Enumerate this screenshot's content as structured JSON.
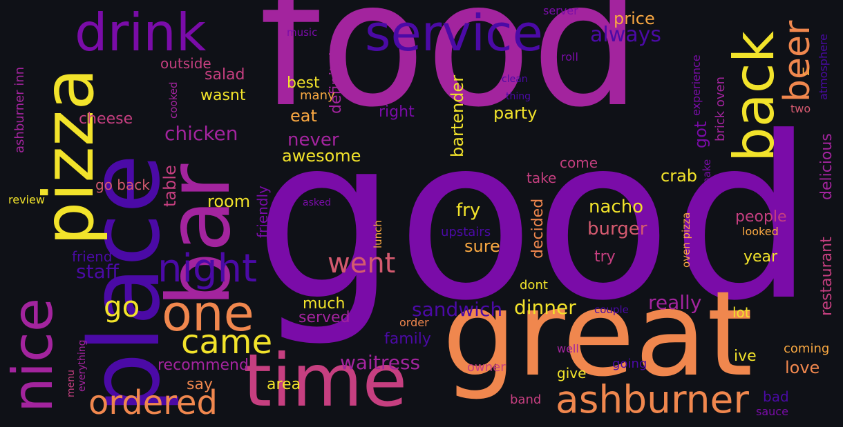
{
  "background": "#0f1117",
  "palette": {
    "deep_purple": "#4b0aa6",
    "purple": "#7a0ca8",
    "magenta": "#a3249e",
    "pink": "#c63f80",
    "salmon": "#d45a6f",
    "orange": "#f0874e",
    "light_orange": "#f9a842",
    "yellow": "#f2e32b"
  },
  "words": [
    {
      "text": "food",
      "color": "#a3249e"
    },
    {
      "text": "good",
      "color": "#7a0ca8"
    },
    {
      "text": "great",
      "color": "#f0874e"
    },
    {
      "text": "place",
      "color": "#4b0aa6"
    },
    {
      "text": "bar",
      "color": "#a3249e"
    },
    {
      "text": "time",
      "color": "#c63f80"
    },
    {
      "text": "pizza",
      "color": "#f2e32b"
    },
    {
      "text": "nice",
      "color": "#a3249e"
    },
    {
      "text": "drink",
      "color": "#7a0ca8"
    },
    {
      "text": "service",
      "color": "#4b0aa6"
    },
    {
      "text": "back",
      "color": "#f2e32b"
    },
    {
      "text": "beer",
      "color": "#f0874e"
    },
    {
      "text": "one",
      "color": "#f0874e"
    },
    {
      "text": "night",
      "color": "#4b0aa6"
    },
    {
      "text": "ashburner",
      "color": "#f0874e"
    },
    {
      "text": "came",
      "color": "#f2e32b"
    },
    {
      "text": "ordered",
      "color": "#f0874e"
    },
    {
      "text": "went",
      "color": "#d45a6f"
    },
    {
      "text": "go",
      "color": "#f2e32b"
    },
    {
      "text": "always",
      "color": "#4b0aa6"
    },
    {
      "text": "u",
      "color": "#f9a842"
    },
    {
      "text": "price",
      "color": "#f9a842"
    },
    {
      "text": "server",
      "color": "#7a0ca8"
    },
    {
      "text": "roll",
      "color": "#7a0ca8"
    },
    {
      "text": "music",
      "color": "#7a0ca8"
    },
    {
      "text": "atmosphere",
      "color": "#4b0aa6"
    },
    {
      "text": "two",
      "color": "#d45a6f"
    },
    {
      "text": "experience",
      "color": "#7a0ca8"
    },
    {
      "text": "brick oven",
      "color": "#a3249e"
    },
    {
      "text": "got",
      "color": "#7a0ca8"
    },
    {
      "text": "delicious",
      "color": "#a3249e"
    },
    {
      "text": "restaurant",
      "color": "#c63f80"
    },
    {
      "text": "make",
      "color": "#7a0ca8"
    },
    {
      "text": "crab",
      "color": "#f2e32b"
    },
    {
      "text": "come",
      "color": "#c63f80"
    },
    {
      "text": "take",
      "color": "#c63f80"
    },
    {
      "text": "nacho",
      "color": "#f2e32b"
    },
    {
      "text": "burger",
      "color": "#d45a6f"
    },
    {
      "text": "try",
      "color": "#c63f80"
    },
    {
      "text": "decided",
      "color": "#f0874e"
    },
    {
      "text": "fry",
      "color": "#f2e32b"
    },
    {
      "text": "upstairs",
      "color": "#4b0aa6"
    },
    {
      "text": "sure",
      "color": "#f9a842"
    },
    {
      "text": "party",
      "color": "#f2e32b"
    },
    {
      "text": "bartender",
      "color": "#f2e32b"
    },
    {
      "text": "right",
      "color": "#7a0ca8"
    },
    {
      "text": "thing",
      "color": "#4b0aa6"
    },
    {
      "text": "clean",
      "color": "#4b0aa6"
    },
    {
      "text": "eat",
      "color": "#f9a842"
    },
    {
      "text": "definitely",
      "color": "#a3249e"
    },
    {
      "text": "best",
      "color": "#f2e32b"
    },
    {
      "text": "many",
      "color": "#f9a842"
    },
    {
      "text": "wasnt",
      "color": "#f2e32b"
    },
    {
      "text": "salad",
      "color": "#c63f80"
    },
    {
      "text": "outside",
      "color": "#c63f80"
    },
    {
      "text": "cooked",
      "color": "#a3249e"
    },
    {
      "text": "cheese",
      "color": "#c63f80"
    },
    {
      "text": "chicken",
      "color": "#a3249e"
    },
    {
      "text": "never",
      "color": "#a3249e"
    },
    {
      "text": "awesome",
      "color": "#f2e32b"
    },
    {
      "text": "table",
      "color": "#c63f80"
    },
    {
      "text": "go back",
      "color": "#d45a6f"
    },
    {
      "text": "room",
      "color": "#f2e32b"
    },
    {
      "text": "friendly",
      "color": "#7a0ca8"
    },
    {
      "text": "asked",
      "color": "#7a0ca8"
    },
    {
      "text": "lunch",
      "color": "#f9a842"
    },
    {
      "text": "oven pizza",
      "color": "#f9a842"
    },
    {
      "text": "people",
      "color": "#c63f80"
    },
    {
      "text": "looked",
      "color": "#f9a842"
    },
    {
      "text": "year",
      "color": "#f2e32b"
    },
    {
      "text": "ashburner inn",
      "color": "#a3249e"
    },
    {
      "text": "review",
      "color": "#f2e32b"
    },
    {
      "text": "friend",
      "color": "#4b0aa6"
    },
    {
      "text": "staff",
      "color": "#4b0aa6"
    },
    {
      "text": "really",
      "color": "#a3249e"
    },
    {
      "text": "sandwich",
      "color": "#4b0aa6"
    },
    {
      "text": "dinner",
      "color": "#f2e32b"
    },
    {
      "text": "couple",
      "color": "#4b0aa6"
    },
    {
      "text": "lot",
      "color": "#f2e32b"
    },
    {
      "text": "dont",
      "color": "#f2e32b"
    },
    {
      "text": "much",
      "color": "#f2e32b"
    },
    {
      "text": "served",
      "color": "#a3249e"
    },
    {
      "text": "order",
      "color": "#f0874e"
    },
    {
      "text": "family",
      "color": "#4b0aa6"
    },
    {
      "text": "waitress",
      "color": "#a3249e"
    },
    {
      "text": "recommend",
      "color": "#a3249e"
    },
    {
      "text": "say",
      "color": "#f0874e"
    },
    {
      "text": "area",
      "color": "#f2e32b"
    },
    {
      "text": "menu",
      "color": "#c63f80"
    },
    {
      "text": "everything",
      "color": "#a3249e"
    },
    {
      "text": "owner",
      "color": "#c63f80"
    },
    {
      "text": "well",
      "color": "#a3249e"
    },
    {
      "text": "give",
      "color": "#f2e32b"
    },
    {
      "text": "going",
      "color": "#4b0aa6"
    },
    {
      "text": "band",
      "color": "#c63f80"
    },
    {
      "text": "ive",
      "color": "#f2e32b"
    },
    {
      "text": "coming",
      "color": "#f9a842"
    },
    {
      "text": "love",
      "color": "#f0874e"
    },
    {
      "text": "bad",
      "color": "#4b0aa6"
    },
    {
      "text": "sauce",
      "color": "#7a0ca8"
    }
  ]
}
